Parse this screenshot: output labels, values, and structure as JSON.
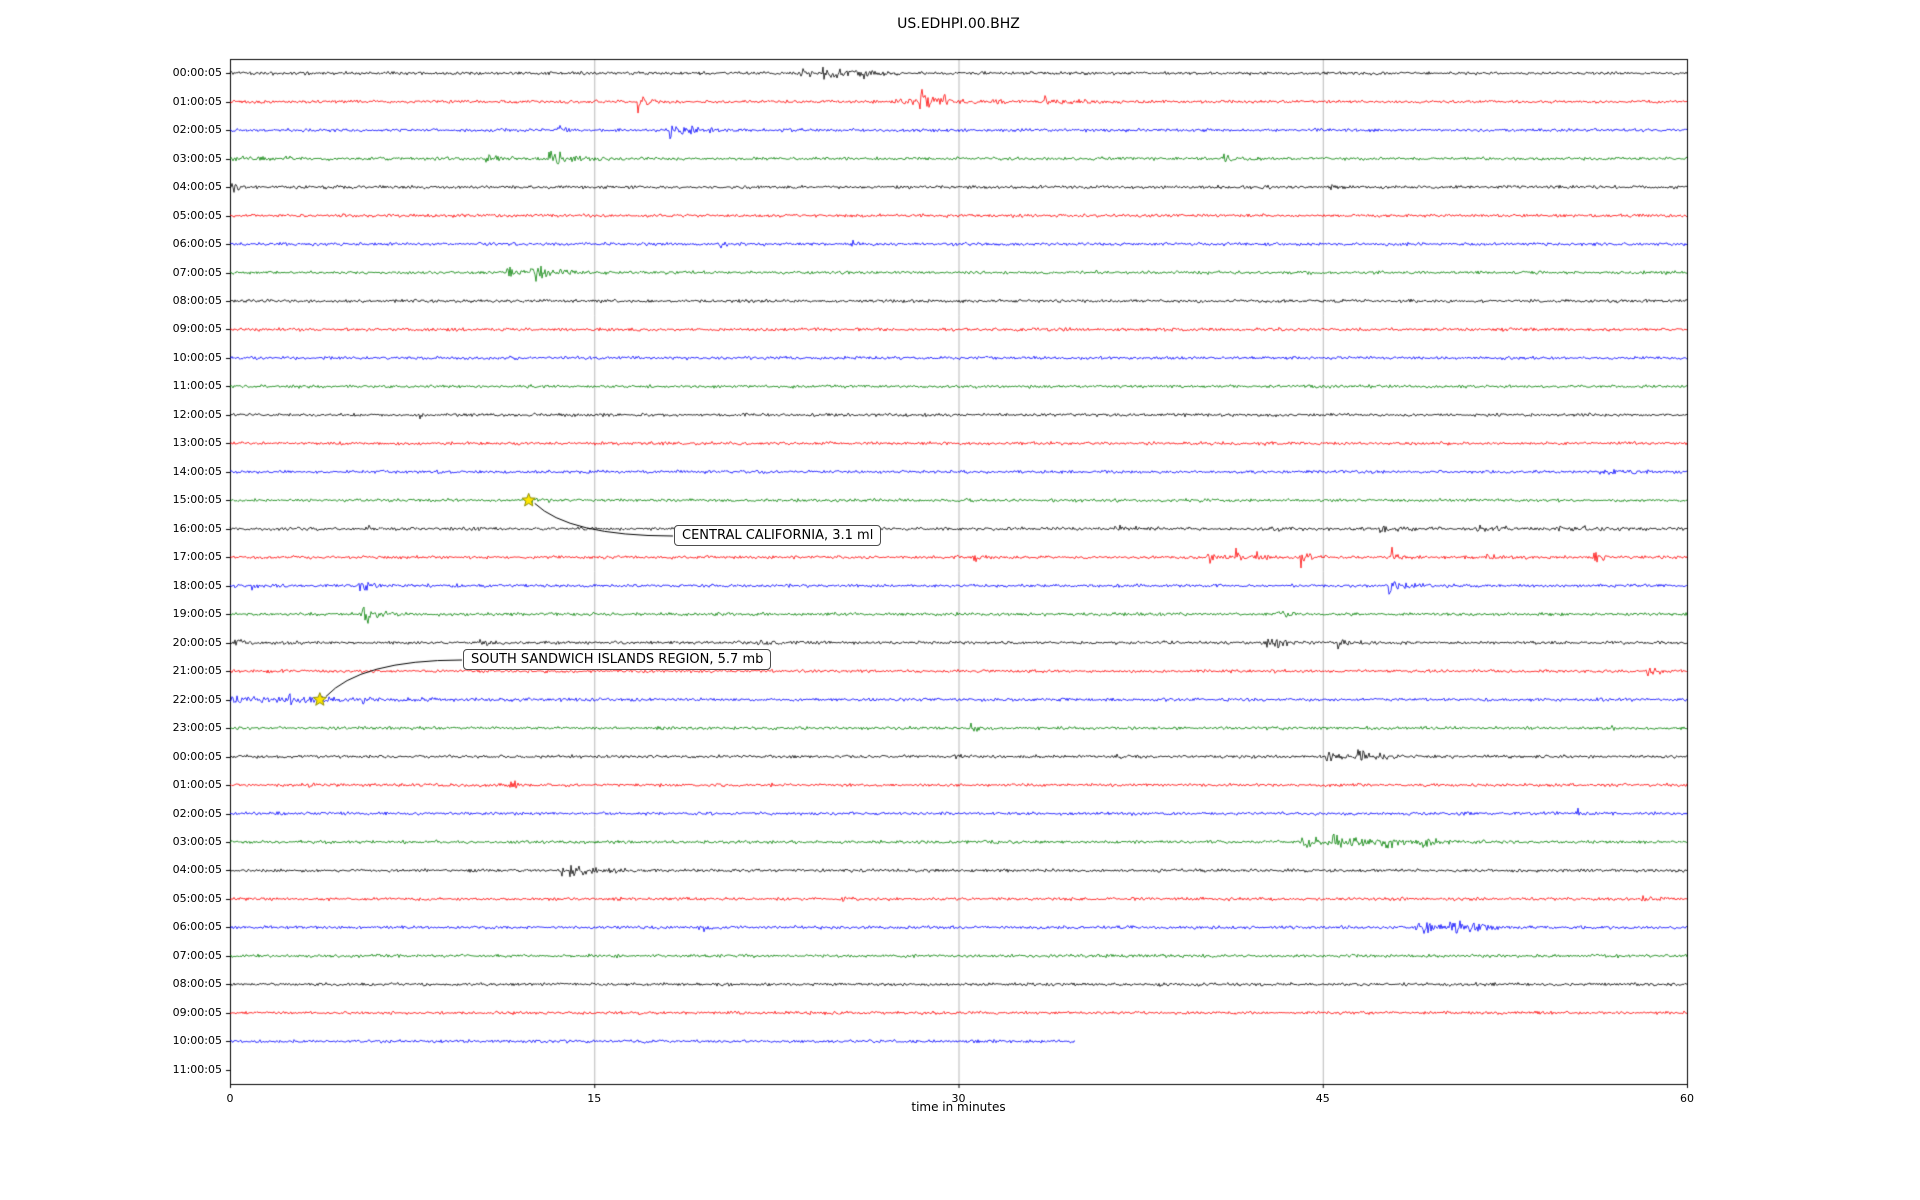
{
  "page": {
    "title": "US.EDHPI.00.BHZ"
  },
  "chart_data": {
    "type": "line",
    "variant": "helicorder-seismogram-dayplot",
    "title": "US.EDHPI.00.BHZ",
    "xlabel": "time in minutes",
    "xlim": [
      0,
      60
    ],
    "x_ticks": [
      "0",
      "15",
      "30",
      "45",
      "60"
    ],
    "x_tick_values": [
      0,
      15,
      30,
      45,
      60
    ],
    "grid": {
      "vertical_gridlines_minutes": [
        15,
        30,
        45
      ],
      "color": "#b8b8b8"
    },
    "row_color_cycle": [
      "#000000",
      "#ff0000",
      "#0000ff",
      "#008000"
    ],
    "minutes_per_row": 60,
    "rows": [
      {
        "label": "00:00:05",
        "color": "#000000",
        "start": 0,
        "end": 60,
        "events": [
          {
            "t": 23.4,
            "d": 0.5,
            "a": 4
          },
          {
            "t": 24.4,
            "d": 0.9,
            "a": 6
          },
          {
            "t": 26.0,
            "d": 0.5,
            "a": 4
          }
        ]
      },
      {
        "label": "01:00:05",
        "color": "#ff0000",
        "start": 0,
        "end": 60,
        "events": [
          {
            "t": 16.8,
            "d": 0.25,
            "a": 9
          },
          {
            "t": 27.4,
            "d": 0.4,
            "a": 6
          },
          {
            "t": 28.4,
            "d": 0.6,
            "a": 8
          },
          {
            "t": 29.2,
            "d": 0.3,
            "a": 5
          },
          {
            "t": 31.4,
            "d": 0.25,
            "a": 5
          },
          {
            "t": 33.4,
            "d": 0.5,
            "a": 5
          },
          {
            "t": 34.9,
            "d": 0.4,
            "a": 4
          }
        ]
      },
      {
        "label": "02:00:05",
        "color": "#0000ff",
        "start": 0,
        "end": 60,
        "events": [
          {
            "t": 13.5,
            "d": 0.25,
            "a": 6
          },
          {
            "t": 18.1,
            "d": 0.5,
            "a": 6
          },
          {
            "t": 18.9,
            "d": 0.4,
            "a": 4
          }
        ]
      },
      {
        "label": "03:00:05",
        "color": "#008000",
        "start": 0,
        "end": 60,
        "events": [
          {
            "t": 0,
            "d": 2.5,
            "a": 1.5
          },
          {
            "t": 10.5,
            "d": 0.6,
            "a": 4
          },
          {
            "t": 13.1,
            "d": 0.7,
            "a": 10
          },
          {
            "t": 40.9,
            "d": 0.3,
            "a": 4
          }
        ]
      },
      {
        "label": "04:00:05",
        "color": "#000000",
        "start": 0,
        "end": 60,
        "events": [
          {
            "t": 0.05,
            "d": 0.25,
            "a": 5
          },
          {
            "t": 45.2,
            "d": 0.4,
            "a": 3
          }
        ]
      },
      {
        "label": "05:00:05",
        "color": "#ff0000",
        "start": 0,
        "end": 60,
        "events": []
      },
      {
        "label": "06:00:05",
        "color": "#0000ff",
        "start": 0,
        "end": 60,
        "events": [
          {
            "t": 20.1,
            "d": 0.25,
            "a": 3
          },
          {
            "t": 25.5,
            "d": 0.3,
            "a": 4
          }
        ]
      },
      {
        "label": "07:00:05",
        "color": "#008000",
        "start": 0,
        "end": 60,
        "events": [
          {
            "t": 11.4,
            "d": 0.5,
            "a": 5
          },
          {
            "t": 12.3,
            "d": 0.7,
            "a": 9
          },
          {
            "t": 13.3,
            "d": 0.4,
            "a": 4
          }
        ]
      },
      {
        "label": "08:00:05",
        "color": "#000000",
        "start": 0,
        "end": 60,
        "events": []
      },
      {
        "label": "09:00:05",
        "color": "#ff0000",
        "start": 0,
        "end": 60,
        "events": []
      },
      {
        "label": "10:00:05",
        "color": "#0000ff",
        "start": 0,
        "end": 60,
        "events": []
      },
      {
        "label": "11:00:05",
        "color": "#008000",
        "start": 0,
        "end": 60,
        "events": []
      },
      {
        "label": "12:00:05",
        "color": "#000000",
        "start": 0,
        "end": 60,
        "events": [
          {
            "t": 7.8,
            "d": 0.2,
            "a": 3
          }
        ]
      },
      {
        "label": "13:00:05",
        "color": "#ff0000",
        "start": 0,
        "end": 60,
        "events": []
      },
      {
        "label": "14:00:05",
        "color": "#0000ff",
        "start": 0,
        "end": 60,
        "events": [
          {
            "t": 56.3,
            "d": 1.2,
            "a": 2
          }
        ]
      },
      {
        "label": "15:00:05",
        "color": "#008000",
        "start": 0,
        "end": 60,
        "events": [
          {
            "t": 12.2,
            "d": 0.4,
            "a": 3
          }
        ]
      },
      {
        "label": "16:00:05",
        "color": "#000000",
        "start": 0,
        "end": 60,
        "events": [
          {
            "t": 5.6,
            "d": 0.2,
            "a": 4
          },
          {
            "t": 36.3,
            "d": 0.8,
            "a": 3
          },
          {
            "t": 42.8,
            "d": 0.4,
            "a": 2.5
          },
          {
            "t": 47.3,
            "d": 0.8,
            "a": 3
          },
          {
            "t": 51.3,
            "d": 0.8,
            "a": 3.5
          },
          {
            "t": 54.5,
            "d": 2.5,
            "a": 1.8
          }
        ]
      },
      {
        "label": "17:00:05",
        "color": "#ff0000",
        "start": 0,
        "end": 60,
        "events": [
          {
            "t": 30.6,
            "d": 0.25,
            "a": 6
          },
          {
            "t": 40.2,
            "d": 0.5,
            "a": 7
          },
          {
            "t": 41.4,
            "d": 0.4,
            "a": 6
          },
          {
            "t": 42.2,
            "d": 0.25,
            "a": 5
          },
          {
            "t": 44.1,
            "d": 0.3,
            "a": 8
          },
          {
            "t": 47.8,
            "d": 0.3,
            "a": 7
          },
          {
            "t": 51.6,
            "d": 0.25,
            "a": 5
          },
          {
            "t": 56.1,
            "d": 0.25,
            "a": 6
          }
        ]
      },
      {
        "label": "18:00:05",
        "color": "#0000ff",
        "start": 0,
        "end": 60,
        "events": [
          {
            "t": 0.8,
            "d": 0.3,
            "a": 6
          },
          {
            "t": 5.3,
            "d": 0.4,
            "a": 10
          },
          {
            "t": 47.7,
            "d": 0.5,
            "a": 8
          },
          {
            "t": 48.5,
            "d": 0.25,
            "a": 4
          }
        ]
      },
      {
        "label": "19:00:05",
        "color": "#008000",
        "start": 0,
        "end": 60,
        "events": [
          {
            "t": 5.4,
            "d": 0.6,
            "a": 10
          },
          {
            "t": 43.1,
            "d": 0.3,
            "a": 4
          }
        ]
      },
      {
        "label": "20:00:05",
        "color": "#000000",
        "start": 0,
        "end": 60,
        "events": [
          {
            "t": 0.15,
            "d": 0.25,
            "a": 4
          },
          {
            "t": 10.2,
            "d": 0.25,
            "a": 5
          },
          {
            "t": 21.6,
            "d": 0.3,
            "a": 4
          },
          {
            "t": 42.7,
            "d": 0.6,
            "a": 6
          },
          {
            "t": 45.6,
            "d": 0.4,
            "a": 6
          }
        ]
      },
      {
        "label": "21:00:05",
        "color": "#ff0000",
        "start": 0,
        "end": 60,
        "events": [
          {
            "t": 58.3,
            "d": 0.3,
            "a": 6
          }
        ]
      },
      {
        "label": "22:00:05",
        "color": "#0000ff",
        "start": 0,
        "end": 60,
        "events": [
          {
            "t": 0,
            "d": 5,
            "a": 2
          },
          {
            "t": 2.4,
            "d": 0.8,
            "a": 4
          },
          {
            "t": 5.4,
            "d": 0.25,
            "a": 5
          }
        ]
      },
      {
        "label": "23:00:05",
        "color": "#008000",
        "start": 0,
        "end": 60,
        "events": [
          {
            "t": 30.5,
            "d": 0.25,
            "a": 5
          },
          {
            "t": 56.7,
            "d": 0.3,
            "a": 3
          }
        ]
      },
      {
        "label": "00:00:05",
        "color": "#000000",
        "start": 0,
        "end": 60,
        "events": [
          {
            "t": 29.7,
            "d": 0.25,
            "a": 4
          },
          {
            "t": 36.3,
            "d": 0.25,
            "a": 3
          },
          {
            "t": 45.1,
            "d": 0.7,
            "a": 5
          },
          {
            "t": 46.4,
            "d": 0.8,
            "a": 5
          }
        ]
      },
      {
        "label": "01:00:05",
        "color": "#ff0000",
        "start": 0,
        "end": 60,
        "events": [
          {
            "t": 3.1,
            "d": 0.25,
            "a": 4
          },
          {
            "t": 6.9,
            "d": 0.25,
            "a": 5
          },
          {
            "t": 11.5,
            "d": 0.3,
            "a": 5
          }
        ]
      },
      {
        "label": "02:00:05",
        "color": "#0000ff",
        "start": 0,
        "end": 60,
        "events": [
          {
            "t": 55.5,
            "d": 0.25,
            "a": 4
          }
        ]
      },
      {
        "label": "03:00:05",
        "color": "#008000",
        "start": 0,
        "end": 60,
        "events": [
          {
            "t": 44.1,
            "d": 1.0,
            "a": 6
          },
          {
            "t": 45.4,
            "d": 1.2,
            "a": 7
          },
          {
            "t": 47.4,
            "d": 1.2,
            "a": 5
          },
          {
            "t": 49.1,
            "d": 0.4,
            "a": 4
          }
        ]
      },
      {
        "label": "04:00:05",
        "color": "#000000",
        "start": 0,
        "end": 60,
        "events": [
          {
            "t": 13.6,
            "d": 0.6,
            "a": 8
          },
          {
            "t": 14.5,
            "d": 0.4,
            "a": 5
          },
          {
            "t": 15.6,
            "d": 0.25,
            "a": 4
          }
        ]
      },
      {
        "label": "05:00:05",
        "color": "#ff0000",
        "start": 0,
        "end": 60,
        "events": [
          {
            "t": 25.1,
            "d": 0.25,
            "a": 4
          },
          {
            "t": 58.1,
            "d": 0.3,
            "a": 5
          }
        ]
      },
      {
        "label": "06:00:05",
        "color": "#0000ff",
        "start": 0,
        "end": 60,
        "events": [
          {
            "t": 19.3,
            "d": 0.25,
            "a": 5
          },
          {
            "t": 48.8,
            "d": 0.8,
            "a": 6
          },
          {
            "t": 50.2,
            "d": 0.8,
            "a": 7
          },
          {
            "t": 51.2,
            "d": 0.4,
            "a": 4
          }
        ]
      },
      {
        "label": "07:00:05",
        "color": "#008000",
        "start": 0,
        "end": 60,
        "events": []
      },
      {
        "label": "08:00:05",
        "color": "#000000",
        "start": 0,
        "end": 60,
        "events": []
      },
      {
        "label": "09:00:05",
        "color": "#ff0000",
        "start": 0,
        "end": 60,
        "events": []
      },
      {
        "label": "10:00:05",
        "color": "#0000ff",
        "start": 0,
        "end": 34.8,
        "events": []
      },
      {
        "label": "11:00:05",
        "color": "#008000",
        "start": 0,
        "end": 0,
        "events": []
      }
    ],
    "annotations": [
      {
        "text": "CENTRAL CALIFORNIA, 3.1 ml",
        "row_index": 15,
        "row_label": "15:00:05",
        "t_minutes": 12.3,
        "marker": "yellow-star",
        "marker_color": "#ffe600"
      },
      {
        "text": "SOUTH SANDWICH ISLANDS REGION, 5.7 mb",
        "row_index": 22,
        "row_label": "22:00:05",
        "t_minutes": 3.7,
        "marker": "yellow-star",
        "marker_color": "#ffe600"
      }
    ]
  }
}
